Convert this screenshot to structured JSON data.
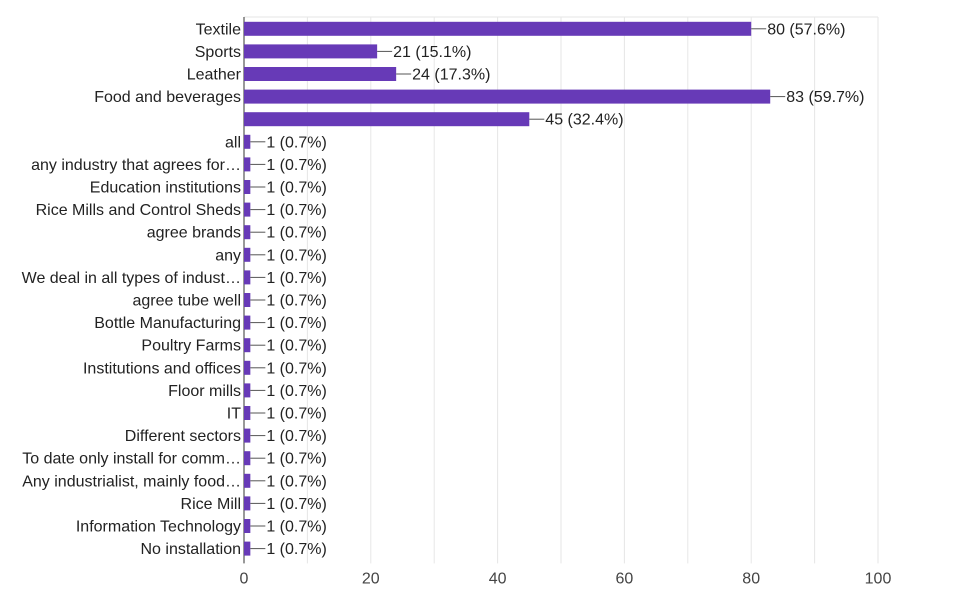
{
  "chart_data": {
    "type": "bar",
    "orientation": "horizontal",
    "categories": [
      "Textile",
      "Sports",
      "Leather",
      "Food and beverages",
      "",
      "all",
      "any industry that agrees for…",
      "Education institutions",
      "Rice Mills and Control Sheds",
      "agree brands",
      "any",
      "We deal in all types of indust…",
      "agree tube well",
      "Bottle Manufacturing",
      "Poultry Farms",
      "Institutions and offices",
      "Floor mills",
      "IT",
      "Different sectors",
      "To date only install for comm…",
      "Any industrialist, mainly food…",
      "Rice Mill",
      "Information Technology",
      "No installation"
    ],
    "values": [
      80,
      21,
      24,
      83,
      45,
      1,
      1,
      1,
      1,
      1,
      1,
      1,
      1,
      1,
      1,
      1,
      1,
      1,
      1,
      1,
      1,
      1,
      1,
      1
    ],
    "value_labels": [
      "80 (57.6%)",
      "21 (15.1%)",
      "24 (17.3%)",
      "83 (59.7%)",
      "45 (32.4%)",
      "1 (0.7%)",
      "1 (0.7%)",
      "1 (0.7%)",
      "1 (0.7%)",
      "1 (0.7%)",
      "1 (0.7%)",
      "1 (0.7%)",
      "1 (0.7%)",
      "1 (0.7%)",
      "1 (0.7%)",
      "1 (0.7%)",
      "1 (0.7%)",
      "1 (0.7%)",
      "1 (0.7%)",
      "1 (0.7%)",
      "1 (0.7%)",
      "1 (0.7%)",
      "1 (0.7%)",
      "1 (0.7%)"
    ],
    "x_ticks": [
      0,
      20,
      40,
      60,
      80,
      100
    ],
    "xlim": [
      0,
      100
    ],
    "grid": true,
    "bar_color": "#673ab7"
  }
}
